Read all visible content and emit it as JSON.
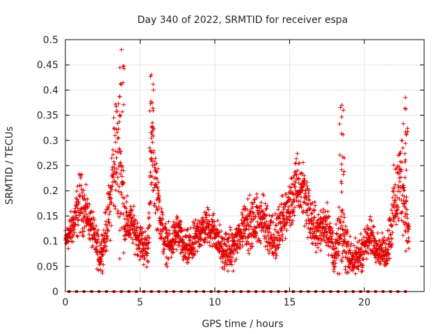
{
  "chart_data": {
    "type": "scatter",
    "title": "Day 340 of 2022, SRMTID for receiver espa",
    "xlabel": "GPS time / hours",
    "ylabel": "SRMTID / TECUs",
    "xlim": [
      0,
      24
    ],
    "ylim": [
      0,
      0.5
    ],
    "x_ticks": [
      0,
      5,
      10,
      15,
      20
    ],
    "y_ticks": [
      0,
      0.05,
      0.1,
      0.15,
      0.2,
      0.25,
      0.3,
      0.35,
      0.4,
      0.45,
      0.5
    ],
    "y_tick_labels": [
      "0",
      "0.05",
      "0.1",
      "0.15",
      "0.2",
      "0.25",
      "0.3",
      "0.35",
      "0.4",
      "0.45",
      "0.5"
    ],
    "grid": true,
    "marker": "+",
    "color": "#e00000",
    "envelope": {
      "x": [
        0,
        0.5,
        1.0,
        1.5,
        2.0,
        2.3,
        2.6,
        3.0,
        3.3,
        3.7,
        4.0,
        4.5,
        5.0,
        5.5,
        5.8,
        6.2,
        6.6,
        7.0,
        7.5,
        8.0,
        8.5,
        9.0,
        9.5,
        10.0,
        10.5,
        11.0,
        11.5,
        12.0,
        12.5,
        13.0,
        13.5,
        14.0,
        14.5,
        15.0,
        15.5,
        16.0,
        16.5,
        17.0,
        17.5,
        18.0,
        18.5,
        19.0,
        19.5,
        20.0,
        20.5,
        21.0,
        21.5,
        22.0,
        22.5,
        23.0
      ],
      "mid": [
        0.1,
        0.13,
        0.18,
        0.15,
        0.1,
        0.07,
        0.1,
        0.17,
        0.28,
        0.24,
        0.14,
        0.13,
        0.1,
        0.08,
        0.28,
        0.18,
        0.1,
        0.09,
        0.12,
        0.08,
        0.09,
        0.12,
        0.13,
        0.12,
        0.08,
        0.08,
        0.1,
        0.14,
        0.13,
        0.15,
        0.13,
        0.1,
        0.14,
        0.17,
        0.21,
        0.2,
        0.13,
        0.12,
        0.14,
        0.07,
        0.12,
        0.07,
        0.06,
        0.09,
        0.11,
        0.08,
        0.08,
        0.17,
        0.23,
        0.1
      ],
      "spread": [
        0.02,
        0.03,
        0.05,
        0.03,
        0.03,
        0.03,
        0.03,
        0.05,
        0.1,
        0.12,
        0.04,
        0.03,
        0.03,
        0.03,
        0.08,
        0.05,
        0.03,
        0.03,
        0.03,
        0.03,
        0.03,
        0.03,
        0.03,
        0.03,
        0.03,
        0.03,
        0.03,
        0.04,
        0.04,
        0.04,
        0.04,
        0.04,
        0.04,
        0.04,
        0.05,
        0.05,
        0.04,
        0.03,
        0.04,
        0.03,
        0.06,
        0.03,
        0.03,
        0.03,
        0.03,
        0.02,
        0.03,
        0.06,
        0.08,
        0.03
      ]
    },
    "peaks": [
      {
        "x": 3.75,
        "y": 0.48
      },
      {
        "x": 5.75,
        "y": 0.43
      },
      {
        "x": 18.5,
        "y": 0.37
      },
      {
        "x": 22.75,
        "y": 0.385
      }
    ],
    "baseline_markers": [
      0.25,
      0.75,
      1.25,
      1.75,
      2.25,
      2.75,
      3.25,
      3.75,
      4.25,
      4.75,
      5.25,
      5.75,
      6.25,
      6.75,
      7.25,
      7.75,
      8.25,
      8.75,
      9.25,
      9.75,
      10.25,
      10.75,
      11.25,
      11.75,
      12.25,
      12.75,
      13.25,
      13.75,
      14.25,
      14.75,
      15.25,
      15.75,
      16.25,
      16.75,
      17.25,
      17.75,
      18.25,
      18.75,
      19.25,
      19.75,
      20.25,
      20.75,
      21.25,
      21.75,
      22.25,
      22.75
    ]
  }
}
